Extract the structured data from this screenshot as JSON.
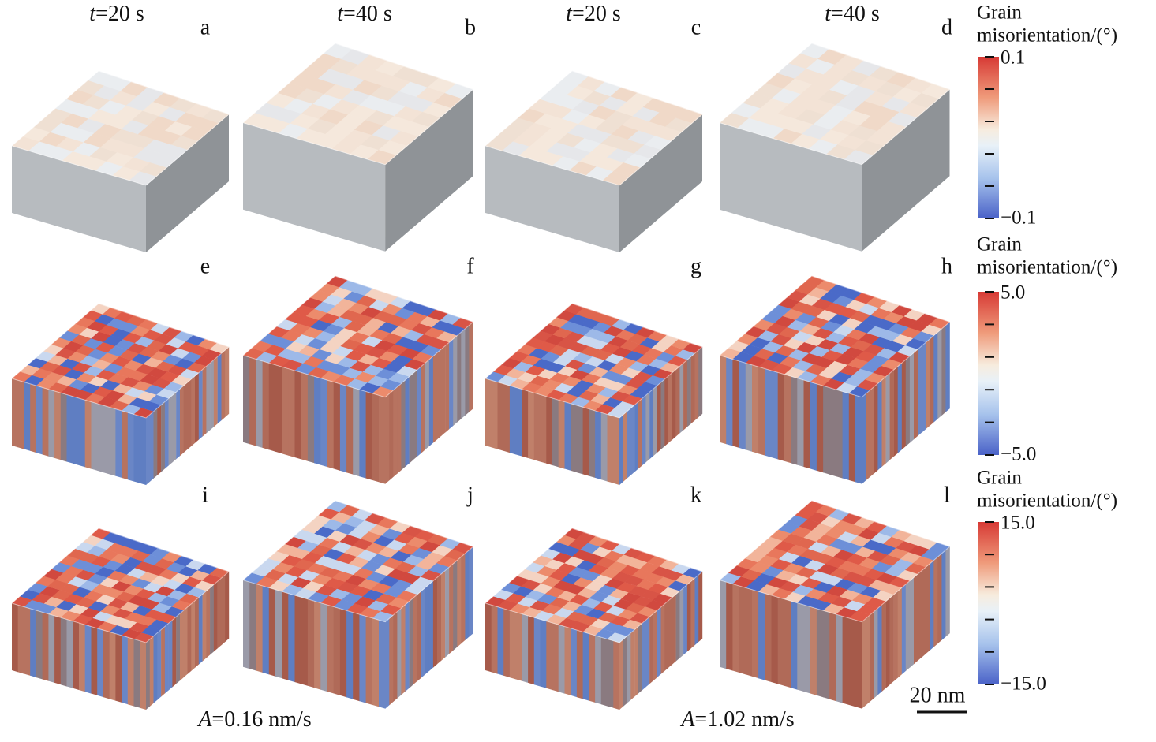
{
  "columns": [
    {
      "var": "t",
      "rest": "=20 s"
    },
    {
      "var": "t",
      "rest": "=40 s"
    },
    {
      "var": "t",
      "rest": "=20 s"
    },
    {
      "var": "t",
      "rest": "=40 s"
    }
  ],
  "panels": [
    "a",
    "b",
    "c",
    "d",
    "e",
    "f",
    "g",
    "h",
    "i",
    "j",
    "k",
    "l"
  ],
  "colorbars": [
    {
      "title": [
        "Grain",
        "misorientation/(°)"
      ],
      "max": "0.1",
      "min": "−0.1"
    },
    {
      "title": [
        "Grain",
        "misorientation/(°)"
      ],
      "max": "5.0",
      "min": "−5.0"
    },
    {
      "title": [
        "Grain",
        "misorientation/(°)"
      ],
      "max": "15.0",
      "min": "−15.0"
    }
  ],
  "scale_bar": "20 nm",
  "conditions": [
    {
      "var": "A",
      "rest": "=0.16 nm/s"
    },
    {
      "var": "A",
      "rest": "=1.02 nm/s"
    }
  ]
}
